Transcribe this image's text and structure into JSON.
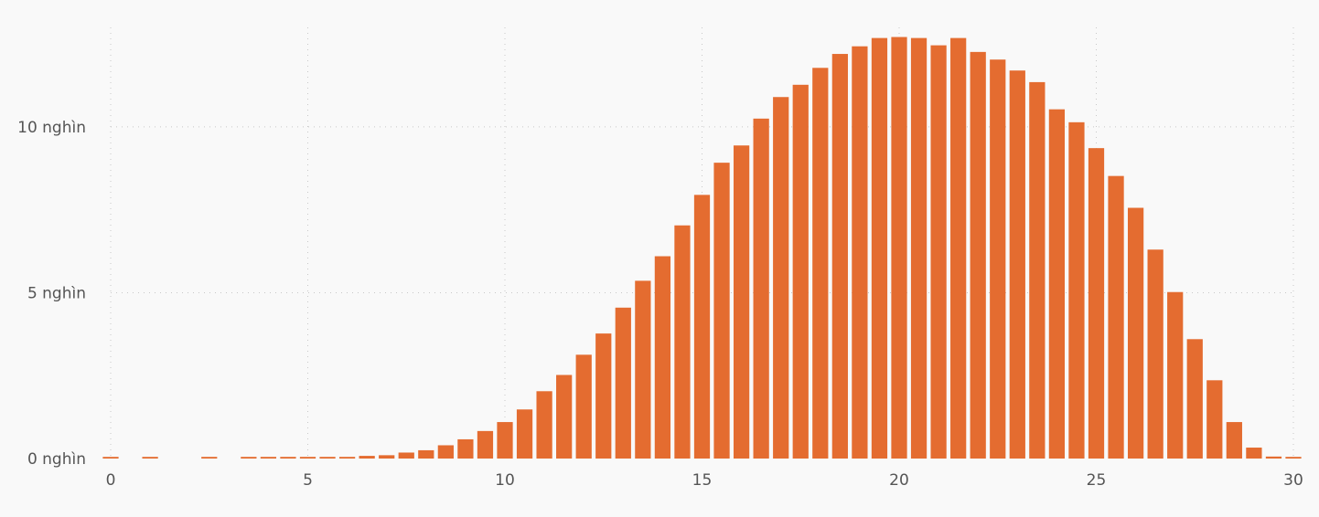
{
  "chart_data": {
    "type": "bar",
    "x_axis": {
      "min": 0,
      "max": 30,
      "ticks": [
        0,
        5,
        10,
        15,
        20,
        25,
        30
      ]
    },
    "y_axis": {
      "min": 0,
      "max": 13000,
      "ticks": [
        {
          "value": 0,
          "label": "0 nghìn"
        },
        {
          "value": 5000,
          "label": "5 nghìn"
        },
        {
          "value": 10000,
          "label": "10 nghìn"
        }
      ]
    },
    "grid": true,
    "bar_width": 0.4,
    "color": "#e46c30",
    "values": [
      {
        "x": 0.0,
        "y": 50
      },
      {
        "x": 0.5,
        "y": 0
      },
      {
        "x": 1.0,
        "y": 50
      },
      {
        "x": 1.5,
        "y": 0
      },
      {
        "x": 2.0,
        "y": 0
      },
      {
        "x": 2.5,
        "y": 50
      },
      {
        "x": 3.0,
        "y": 0
      },
      {
        "x": 3.5,
        "y": 50
      },
      {
        "x": 4.0,
        "y": 50
      },
      {
        "x": 4.5,
        "y": 50
      },
      {
        "x": 5.0,
        "y": 50
      },
      {
        "x": 5.5,
        "y": 50
      },
      {
        "x": 6.0,
        "y": 50
      },
      {
        "x": 6.5,
        "y": 80
      },
      {
        "x": 7.0,
        "y": 100
      },
      {
        "x": 7.5,
        "y": 180
      },
      {
        "x": 8.0,
        "y": 250
      },
      {
        "x": 8.5,
        "y": 400
      },
      {
        "x": 9.0,
        "y": 580
      },
      {
        "x": 9.5,
        "y": 830
      },
      {
        "x": 10.0,
        "y": 1100
      },
      {
        "x": 10.5,
        "y": 1480
      },
      {
        "x": 11.0,
        "y": 2030
      },
      {
        "x": 11.5,
        "y": 2520
      },
      {
        "x": 12.0,
        "y": 3130
      },
      {
        "x": 12.5,
        "y": 3770
      },
      {
        "x": 13.0,
        "y": 4550
      },
      {
        "x": 13.5,
        "y": 5360
      },
      {
        "x": 14.0,
        "y": 6100
      },
      {
        "x": 14.5,
        "y": 7030
      },
      {
        "x": 15.0,
        "y": 7950
      },
      {
        "x": 15.5,
        "y": 8920
      },
      {
        "x": 16.0,
        "y": 9440
      },
      {
        "x": 16.5,
        "y": 10250
      },
      {
        "x": 17.0,
        "y": 10900
      },
      {
        "x": 17.5,
        "y": 11270
      },
      {
        "x": 18.0,
        "y": 11780
      },
      {
        "x": 18.5,
        "y": 12200
      },
      {
        "x": 19.0,
        "y": 12430
      },
      {
        "x": 19.5,
        "y": 12680
      },
      {
        "x": 20.0,
        "y": 12710
      },
      {
        "x": 20.5,
        "y": 12680
      },
      {
        "x": 21.0,
        "y": 12460
      },
      {
        "x": 21.5,
        "y": 12680
      },
      {
        "x": 22.0,
        "y": 12260
      },
      {
        "x": 22.5,
        "y": 12030
      },
      {
        "x": 23.0,
        "y": 11700
      },
      {
        "x": 23.5,
        "y": 11350
      },
      {
        "x": 24.0,
        "y": 10530
      },
      {
        "x": 24.5,
        "y": 10140
      },
      {
        "x": 25.0,
        "y": 9360
      },
      {
        "x": 25.5,
        "y": 8520
      },
      {
        "x": 26.0,
        "y": 7560
      },
      {
        "x": 26.5,
        "y": 6300
      },
      {
        "x": 27.0,
        "y": 5020
      },
      {
        "x": 27.5,
        "y": 3600
      },
      {
        "x": 28.0,
        "y": 2360
      },
      {
        "x": 28.5,
        "y": 1100
      },
      {
        "x": 29.0,
        "y": 330
      },
      {
        "x": 29.5,
        "y": 60
      },
      {
        "x": 30.0,
        "y": 50
      }
    ]
  }
}
